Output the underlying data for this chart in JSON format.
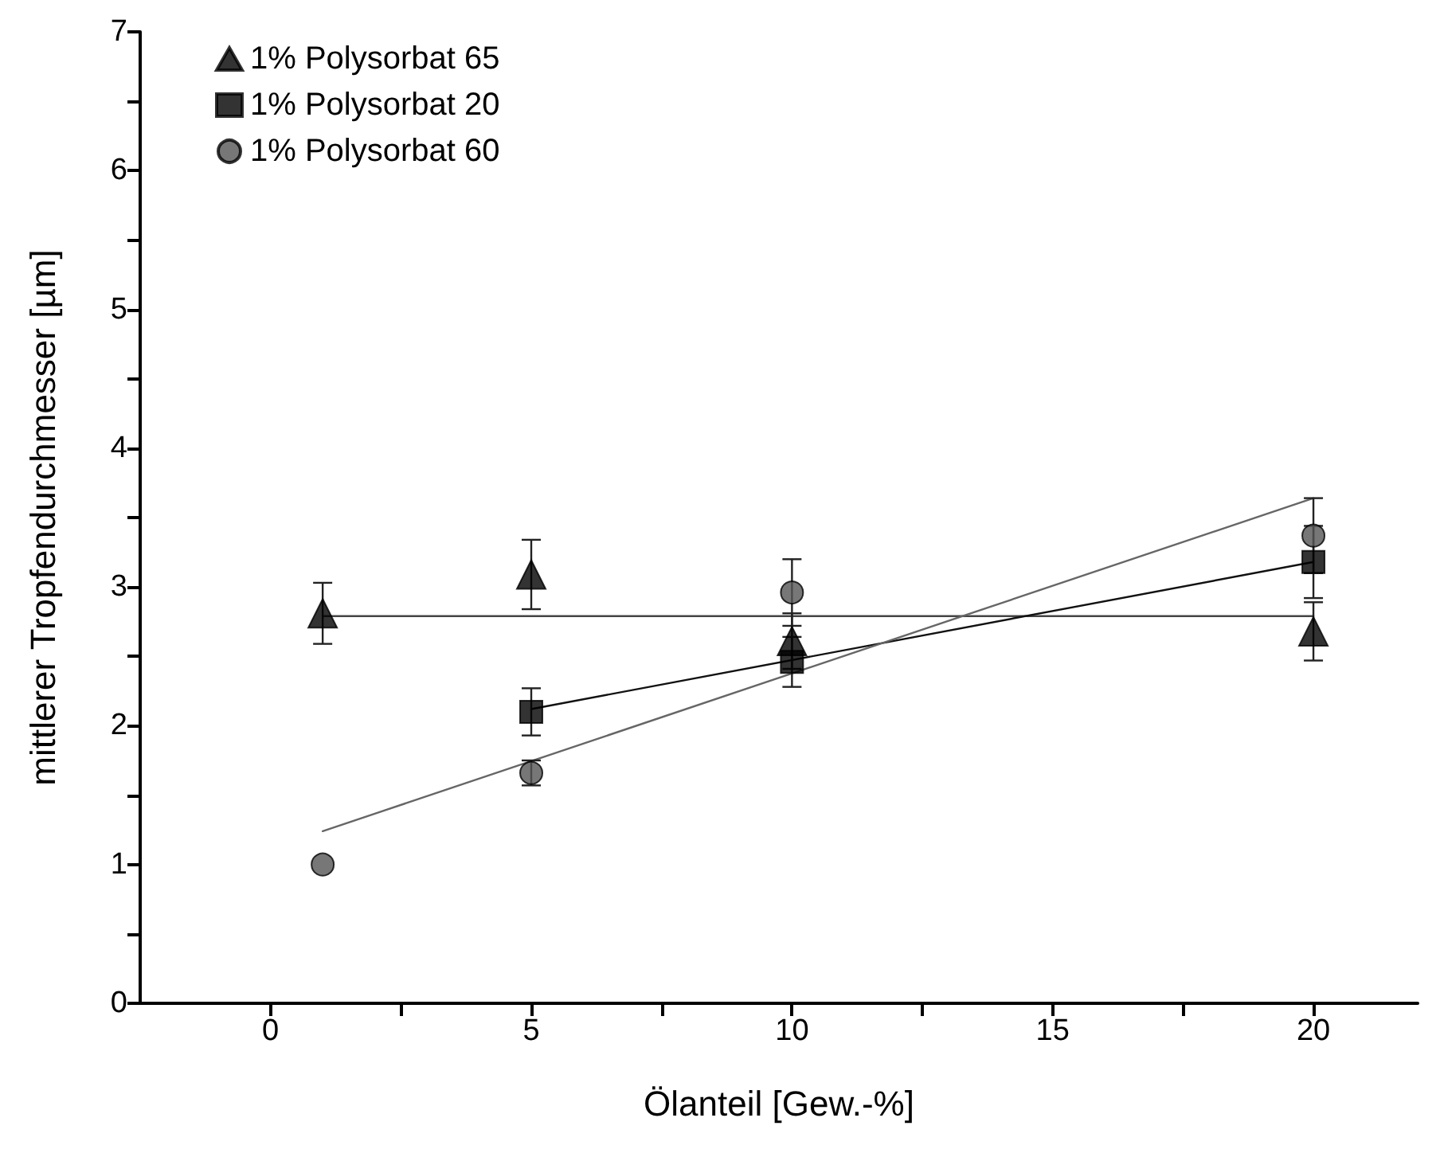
{
  "chart_data": {
    "type": "scatter",
    "xlabel": "Ölanteil [Gew.-%]",
    "ylabel": "mittlerer Tropfendurchmesser [µm]",
    "xlim": [
      -2.5,
      22
    ],
    "ylim": [
      0,
      7
    ],
    "xticks": [
      0,
      {
        "value": 2.5,
        "label": null
      },
      5,
      {
        "value": 7.5,
        "label": null
      },
      10,
      {
        "value": 12.5,
        "label": null
      },
      15,
      {
        "value": 17.5,
        "label": null
      },
      20
    ],
    "yticks": [
      0,
      {
        "value": 0.5,
        "label": null
      },
      1,
      {
        "value": 1.5,
        "label": null
      },
      2,
      {
        "value": 2.5,
        "label": null
      },
      3,
      {
        "value": 3.5,
        "label": null
      },
      4,
      {
        "value": 4.5,
        "label": null
      },
      5,
      {
        "value": 5.5,
        "label": null
      },
      6,
      {
        "value": 6.5,
        "label": null
      },
      7
    ],
    "grid": false,
    "legend": "top left",
    "series": [
      {
        "name": "1% Polysorbat 65",
        "color": "#000000",
        "marker": "triangle",
        "x": [
          1,
          5,
          10,
          20
        ],
        "values": [
          2.81,
          3.09,
          2.61,
          2.68
        ],
        "errors": [
          0.22,
          0.25,
          0.2,
          0.21
        ]
      },
      {
        "name": "1% Polysorbat 20",
        "color": "#000000",
        "marker": "square",
        "x": [
          5,
          10,
          20
        ],
        "values": [
          2.1,
          2.46,
          3.18
        ],
        "errors": [
          0.17,
          0.18,
          0.26
        ]
      },
      {
        "name": "1% Polysorbat 60",
        "color": "#555555",
        "marker": "circle",
        "x": [
          1,
          5,
          10,
          20
        ],
        "values": [
          1.0,
          1.66,
          2.96,
          3.37
        ],
        "errors": [
          null,
          0.09,
          0.24,
          0.27
        ]
      },
      {
        "type": "line",
        "color": "#444444",
        "marker": "none",
        "x": [
          1,
          20
        ],
        "values": [
          2.79,
          2.79
        ]
      },
      {
        "type": "line",
        "color": "#111111",
        "marker": "none",
        "x": [
          5,
          20
        ],
        "values": [
          2.12,
          3.18
        ]
      },
      {
        "type": "line",
        "color": "#666666",
        "marker": "none",
        "x": [
          1,
          20
        ],
        "values": [
          1.24,
          3.64
        ]
      }
    ]
  }
}
